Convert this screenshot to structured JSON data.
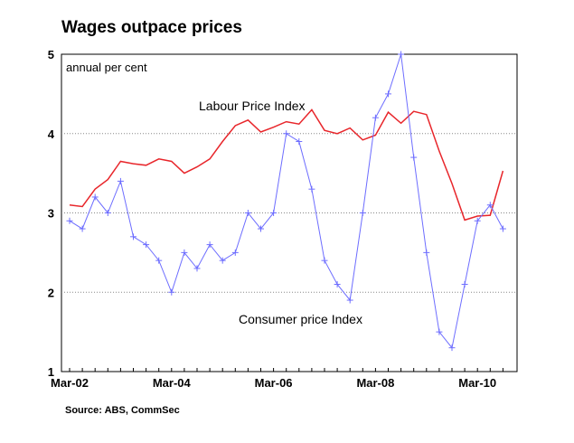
{
  "chart_data": {
    "type": "line",
    "title": "Wages outpace prices",
    "subtitle": "annual per cent",
    "source": "Source: ABS, CommSec",
    "ylim": [
      1,
      5
    ],
    "y_ticks": [
      "1",
      "2",
      "3",
      "4",
      "5"
    ],
    "x_ticks": [
      "Mar-02",
      "Mar-04",
      "Mar-06",
      "Mar-08",
      "Mar-10"
    ],
    "grid": "horizontal dotted",
    "colors": {
      "lpi": "#e8262b",
      "cpi": "#6d6dff",
      "grid": "#888888"
    },
    "series": [
      {
        "name": "Labour Price Index",
        "x": [
          "Mar-02",
          "Jun-02",
          "Sep-02",
          "Dec-02",
          "Mar-03",
          "Jun-03",
          "Sep-03",
          "Dec-03",
          "Mar-04",
          "Jun-04",
          "Sep-04",
          "Dec-04",
          "Mar-05",
          "Jun-05",
          "Sep-05",
          "Dec-05",
          "Mar-06",
          "Jun-06",
          "Sep-06",
          "Dec-06",
          "Mar-07",
          "Jun-07",
          "Sep-07",
          "Dec-07",
          "Mar-08",
          "Jun-08",
          "Sep-08",
          "Dec-08",
          "Mar-09",
          "Jun-09",
          "Sep-09",
          "Dec-09",
          "Mar-10",
          "Jun-10",
          "Sep-10"
        ],
        "values": [
          3.1,
          3.08,
          3.3,
          3.42,
          3.65,
          3.62,
          3.6,
          3.68,
          3.65,
          3.5,
          3.58,
          3.68,
          3.9,
          4.1,
          4.17,
          4.02,
          4.08,
          4.15,
          4.12,
          4.3,
          4.04,
          4.0,
          4.07,
          3.92,
          3.98,
          4.27,
          4.13,
          4.28,
          4.24,
          3.78,
          3.37,
          2.91,
          2.96,
          2.97,
          3.53
        ]
      },
      {
        "name": "Consumer price Index",
        "x": [
          "Mar-02",
          "Jun-02",
          "Sep-02",
          "Dec-02",
          "Mar-03",
          "Jun-03",
          "Sep-03",
          "Dec-03",
          "Mar-04",
          "Jun-04",
          "Sep-04",
          "Dec-04",
          "Mar-05",
          "Jun-05",
          "Sep-05",
          "Dec-05",
          "Mar-06",
          "Jun-06",
          "Sep-06",
          "Dec-06",
          "Mar-07",
          "Jun-07",
          "Sep-07",
          "Dec-07",
          "Mar-08",
          "Jun-08",
          "Sep-08",
          "Dec-08",
          "Mar-09",
          "Jun-09",
          "Sep-09",
          "Dec-09",
          "Mar-10",
          "Jun-10",
          "Sep-10"
        ],
        "values": [
          2.9,
          2.8,
          3.2,
          3.0,
          3.4,
          2.7,
          2.6,
          2.4,
          2.0,
          2.5,
          2.3,
          2.6,
          2.4,
          2.5,
          3.0,
          2.8,
          3.0,
          4.0,
          3.9,
          3.3,
          2.4,
          2.1,
          1.9,
          3.0,
          4.2,
          4.5,
          5.0,
          3.7,
          2.5,
          1.5,
          1.3,
          2.1,
          2.9,
          3.1,
          2.8
        ]
      }
    ]
  }
}
